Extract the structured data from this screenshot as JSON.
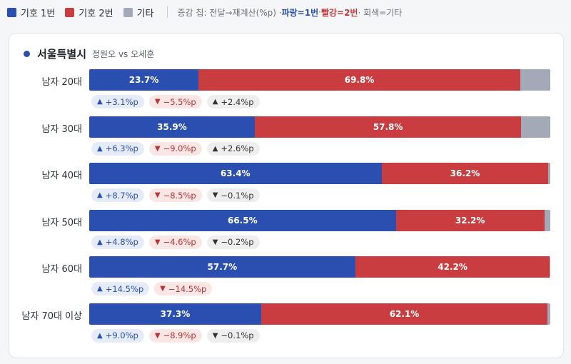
{
  "legend": {
    "items": [
      {
        "label": "기호 1번",
        "color": "#2b4fb0"
      },
      {
        "label": "기호 2번",
        "color": "#c93c3f"
      },
      {
        "label": "기타",
        "color": "#a3a9b6"
      }
    ],
    "note_prefix": "증감 칩: 전달→재계산(%p) · ",
    "note_blue": "파랑=1번",
    "note_sep1": " · ",
    "note_red": "빨강=2번",
    "note_suffix": " · 회색=기타"
  },
  "card": {
    "region": "서울특별시",
    "matchup": "정원오 vs 오세훈"
  },
  "chart_data": {
    "type": "bar",
    "orientation": "horizontal-stacked-100",
    "categories": [
      "남자 20대",
      "남자 30대",
      "남자 40대",
      "남자 50대",
      "남자 60대",
      "남자 70대 이상"
    ],
    "series": [
      {
        "name": "기호 1번",
        "values": [
          23.7,
          35.9,
          63.4,
          66.5,
          57.7,
          37.3
        ],
        "color": "#2b4fb0"
      },
      {
        "name": "기호 2번",
        "values": [
          69.8,
          57.8,
          36.2,
          32.2,
          42.2,
          62.1
        ],
        "color": "#c93c3f"
      },
      {
        "name": "기타",
        "values": [
          6.5,
          6.3,
          0.4,
          1.3,
          0.1,
          0.6
        ],
        "color": "#a3a9b6"
      }
    ],
    "value_labels": [
      [
        "23.7%",
        "69.8%"
      ],
      [
        "35.9%",
        "57.8%"
      ],
      [
        "63.4%",
        "36.2%"
      ],
      [
        "66.5%",
        "32.2%"
      ],
      [
        "57.7%",
        "42.2%"
      ],
      [
        "37.3%",
        "62.1%"
      ]
    ],
    "changes": [
      [
        {
          "text": "+3.1%p",
          "dir": "up",
          "party": "blue"
        },
        {
          "text": "−5.5%p",
          "dir": "down",
          "party": "red"
        },
        {
          "text": "+2.4%p",
          "dir": "up",
          "party": "gray"
        }
      ],
      [
        {
          "text": "+6.3%p",
          "dir": "up",
          "party": "blue"
        },
        {
          "text": "−9.0%p",
          "dir": "down",
          "party": "red"
        },
        {
          "text": "+2.6%p",
          "dir": "up",
          "party": "gray"
        }
      ],
      [
        {
          "text": "+8.7%p",
          "dir": "up",
          "party": "blue"
        },
        {
          "text": "−8.5%p",
          "dir": "down",
          "party": "red"
        },
        {
          "text": "−0.1%p",
          "dir": "down",
          "party": "gray"
        }
      ],
      [
        {
          "text": "+4.8%p",
          "dir": "up",
          "party": "blue"
        },
        {
          "text": "−4.6%p",
          "dir": "down",
          "party": "red"
        },
        {
          "text": "−0.2%p",
          "dir": "down",
          "party": "gray"
        }
      ],
      [
        {
          "text": "+14.5%p",
          "dir": "up",
          "party": "blue"
        },
        {
          "text": "−14.5%p",
          "dir": "down",
          "party": "red"
        }
      ],
      [
        {
          "text": "+9.0%p",
          "dir": "up",
          "party": "blue"
        },
        {
          "text": "−8.9%p",
          "dir": "down",
          "party": "red"
        },
        {
          "text": "−0.1%p",
          "dir": "down",
          "party": "gray"
        }
      ]
    ],
    "xlim": [
      0,
      100
    ]
  }
}
